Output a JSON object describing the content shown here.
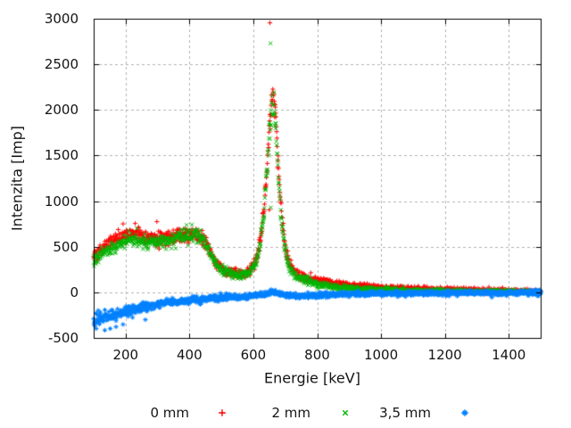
{
  "chart_data": {
    "type": "scatter",
    "title": "",
    "xlabel": "Energie [keV]",
    "ylabel": "Intenzita [Imp]",
    "xlim": [
      100,
      1500
    ],
    "ylim": [
      -500,
      3000
    ],
    "xticks": [
      200,
      400,
      600,
      800,
      1000,
      1200,
      1400
    ],
    "yticks": [
      3000,
      2500,
      2000,
      1500,
      1000,
      500,
      0,
      -500
    ],
    "grid": true,
    "grid_color": "#b1b1b1",
    "border_color": "#000000",
    "text_color": "#141414",
    "legend_position": "bottom-center",
    "peak_center_keV": 661,
    "series": [
      {
        "name": "0 mm",
        "color": "#ff0000",
        "marker": "plus",
        "seed": 101,
        "noise": {
          "type": "sqrt",
          "base": 6,
          "coef": 1.35
        },
        "anchors": [
          [
            100,
            390
          ],
          [
            125,
            470
          ],
          [
            150,
            545
          ],
          [
            175,
            595
          ],
          [
            200,
            635
          ],
          [
            220,
            655
          ],
          [
            240,
            640
          ],
          [
            260,
            600
          ],
          [
            280,
            580
          ],
          [
            300,
            585
          ],
          [
            320,
            595
          ],
          [
            340,
            608
          ],
          [
            360,
            620
          ],
          [
            380,
            632
          ],
          [
            400,
            642
          ],
          [
            420,
            645
          ],
          [
            435,
            618
          ],
          [
            450,
            548
          ],
          [
            465,
            440
          ],
          [
            480,
            340
          ],
          [
            495,
            278
          ],
          [
            510,
            245
          ],
          [
            525,
            225
          ],
          [
            540,
            214
          ],
          [
            555,
            208
          ],
          [
            570,
            214
          ],
          [
            585,
            235
          ],
          [
            600,
            300
          ],
          [
            612,
            400
          ],
          [
            625,
            650
          ],
          [
            635,
            1000
          ],
          [
            645,
            1500
          ],
          [
            652,
            1900
          ],
          [
            658,
            2080
          ],
          [
            661,
            2150
          ],
          [
            664,
            2100
          ],
          [
            670,
            1900
          ],
          [
            676,
            1550
          ],
          [
            682,
            1150
          ],
          [
            690,
            800
          ],
          [
            698,
            550
          ],
          [
            706,
            400
          ],
          [
            715,
            300
          ],
          [
            725,
            240
          ],
          [
            740,
            200
          ],
          [
            755,
            180
          ],
          [
            770,
            155
          ],
          [
            785,
            145
          ],
          [
            800,
            135
          ],
          [
            825,
            115
          ],
          [
            850,
            100
          ],
          [
            875,
            90
          ],
          [
            900,
            80
          ],
          [
            950,
            65
          ],
          [
            1000,
            52
          ],
          [
            1050,
            46
          ],
          [
            1100,
            40
          ],
          [
            1150,
            35
          ],
          [
            1200,
            30
          ],
          [
            1250,
            26
          ],
          [
            1300,
            22
          ],
          [
            1350,
            18
          ],
          [
            1400,
            15
          ],
          [
            1450,
            12
          ],
          [
            1500,
            10
          ]
        ],
        "outliers": [
          [
            652,
            2955
          ],
          [
            230,
            755
          ],
          [
            298,
            775
          ],
          [
            650,
            905
          ]
        ]
      },
      {
        "name": "2 mm",
        "color": "#00b400",
        "marker": "cross",
        "seed": 202,
        "noise": {
          "type": "sqrt",
          "base": 6,
          "coef": 1.3
        },
        "anchors": [
          [
            100,
            340
          ],
          [
            125,
            415
          ],
          [
            150,
            480
          ],
          [
            175,
            525
          ],
          [
            200,
            560
          ],
          [
            220,
            575
          ],
          [
            240,
            565
          ],
          [
            260,
            540
          ],
          [
            280,
            530
          ],
          [
            300,
            545
          ],
          [
            320,
            560
          ],
          [
            340,
            580
          ],
          [
            360,
            598
          ],
          [
            380,
            613
          ],
          [
            400,
            625
          ],
          [
            420,
            630
          ],
          [
            435,
            604
          ],
          [
            450,
            535
          ],
          [
            465,
            428
          ],
          [
            480,
            328
          ],
          [
            495,
            265
          ],
          [
            510,
            232
          ],
          [
            525,
            212
          ],
          [
            540,
            200
          ],
          [
            555,
            195
          ],
          [
            570,
            200
          ],
          [
            585,
            220
          ],
          [
            600,
            280
          ],
          [
            612,
            370
          ],
          [
            625,
            600
          ],
          [
            635,
            950
          ],
          [
            645,
            1430
          ],
          [
            652,
            1820
          ],
          [
            658,
            2000
          ],
          [
            661,
            2060
          ],
          [
            664,
            2010
          ],
          [
            670,
            1820
          ],
          [
            676,
            1480
          ],
          [
            682,
            1080
          ],
          [
            690,
            740
          ],
          [
            698,
            500
          ],
          [
            706,
            355
          ],
          [
            715,
            260
          ],
          [
            725,
            205
          ],
          [
            740,
            165
          ],
          [
            755,
            140
          ],
          [
            770,
            120
          ],
          [
            785,
            105
          ],
          [
            800,
            92
          ],
          [
            825,
            75
          ],
          [
            850,
            62
          ],
          [
            875,
            52
          ],
          [
            900,
            45
          ],
          [
            950,
            35
          ],
          [
            1000,
            28
          ],
          [
            1050,
            24
          ],
          [
            1100,
            20
          ],
          [
            1150,
            17
          ],
          [
            1200,
            14
          ],
          [
            1250,
            12
          ],
          [
            1300,
            10
          ],
          [
            1350,
            8
          ],
          [
            1400,
            6
          ],
          [
            1450,
            5
          ],
          [
            1500,
            4
          ]
        ],
        "outliers": [
          [
            654,
            2730
          ],
          [
            408,
            742
          ],
          [
            235,
            700
          ],
          [
            655,
            930
          ]
        ]
      },
      {
        "name": "3,5 mm",
        "color": "#0080ff",
        "marker": "asterisk",
        "seed": 303,
        "noise": {
          "type": "decay",
          "base": 12,
          "amp": 28,
          "tau": 180,
          "end_amp": 10,
          "end_tau": 18
        },
        "dense_tail_from": 1462,
        "anchors": [
          [
            100,
            -295
          ],
          [
            120,
            -285
          ],
          [
            140,
            -270
          ],
          [
            160,
            -250
          ],
          [
            180,
            -230
          ],
          [
            200,
            -210
          ],
          [
            225,
            -186
          ],
          [
            250,
            -165
          ],
          [
            275,
            -148
          ],
          [
            300,
            -132
          ],
          [
            325,
            -118
          ],
          [
            350,
            -106
          ],
          [
            375,
            -95
          ],
          [
            400,
            -86
          ],
          [
            425,
            -78
          ],
          [
            450,
            -71
          ],
          [
            475,
            -65
          ],
          [
            500,
            -60
          ],
          [
            525,
            -55
          ],
          [
            550,
            -50
          ],
          [
            575,
            -46
          ],
          [
            600,
            -40
          ],
          [
            620,
            -30
          ],
          [
            640,
            -15
          ],
          [
            655,
            0
          ],
          [
            662,
            8
          ],
          [
            670,
            0
          ],
          [
            680,
            -14
          ],
          [
            695,
            -30
          ],
          [
            710,
            -38
          ],
          [
            730,
            -42
          ],
          [
            750,
            -42
          ],
          [
            775,
            -38
          ],
          [
            800,
            -33
          ],
          [
            850,
            -26
          ],
          [
            900,
            -20
          ],
          [
            950,
            -16
          ],
          [
            1000,
            -13
          ],
          [
            1100,
            -10
          ],
          [
            1200,
            -8
          ],
          [
            1300,
            -7
          ],
          [
            1400,
            -6
          ],
          [
            1500,
            -5
          ]
        ],
        "outliers": [
          [
            135,
            -415
          ],
          [
            152,
            -398
          ],
          [
            170,
            -378
          ],
          [
            192,
            -352
          ],
          [
            262,
            -300
          ]
        ]
      }
    ]
  }
}
